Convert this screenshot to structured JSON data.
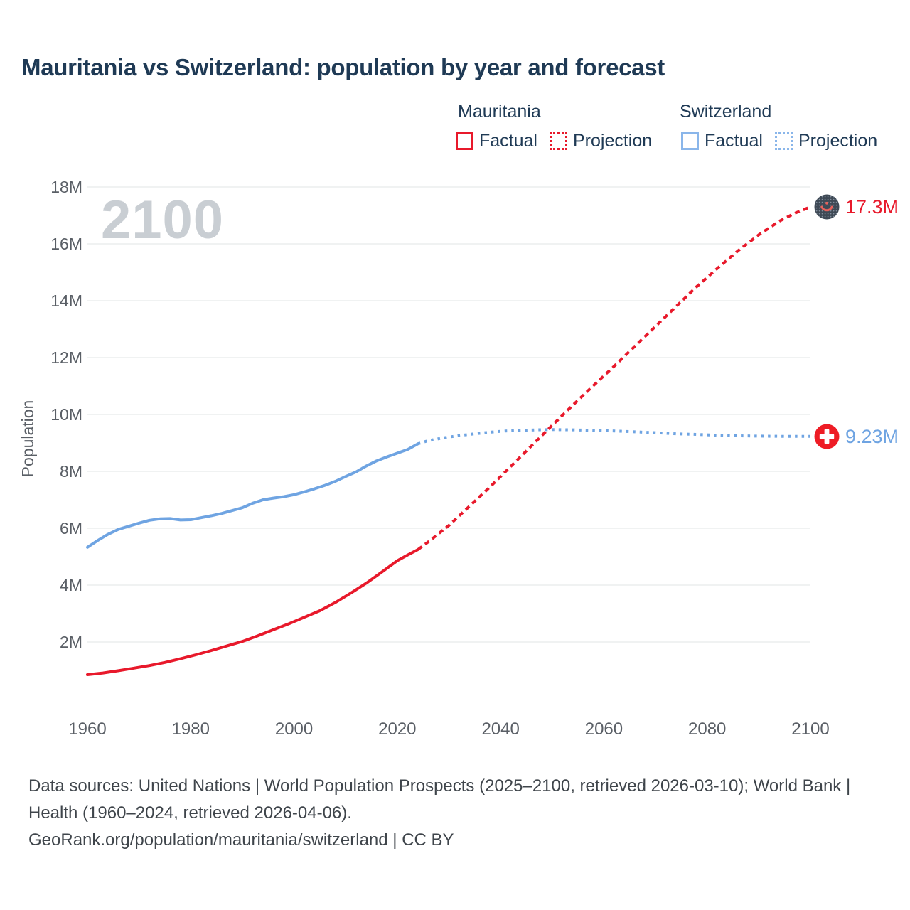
{
  "title": "Mauritania vs Switzerland: population by year and forecast",
  "watermark": {
    "label": "2100"
  },
  "colors": {
    "mauritania_red": "#e8192b",
    "switzerland_blue": "#6fa4e2",
    "swatch_blue": "#8ab6ea",
    "grid": "#e7e9eb",
    "title_text": "#1f3a55",
    "axis_text": "#5a5f66",
    "watermark_text": "#c9ced3",
    "footer_text": "#3f454b",
    "mauritania_icon_bg": "#3e4955",
    "mauritania_icon_crescent": "#e8625c",
    "swiss_icon_red": "#ee1c25"
  },
  "legend": {
    "groups": [
      {
        "name": "Mauritania",
        "items": [
          {
            "label": "Factual",
            "style": "solid"
          },
          {
            "label": "Projection",
            "style": "dotted"
          }
        ]
      },
      {
        "name": "Switzerland",
        "items": [
          {
            "label": "Factual",
            "style": "solid"
          },
          {
            "label": "Projection",
            "style": "dotted"
          }
        ]
      }
    ]
  },
  "end_labels": [
    {
      "series": "Mauritania",
      "value": "17.3M",
      "year": 2100,
      "color": "#e8192b",
      "icon": "mauritania-flag-icon"
    },
    {
      "series": "Switzerland",
      "value": "9.23M",
      "year": 2100,
      "color": "#6fa4e2",
      "icon": "switzerland-flag-icon"
    }
  ],
  "footer": {
    "sources": "Data sources: United Nations | World Population Prospects (2025–2100, retrieved 2026-03-10); World Bank | Health (1960–2024, retrieved 2026-04-06).",
    "attribution": "GeoRank.org/population/mauritania/switzerland | CC BY"
  },
  "chart_data": {
    "type": "line",
    "title": "Mauritania vs Switzerland: population by year and forecast",
    "xlabel": "",
    "ylabel": "Population",
    "xlim": [
      1960,
      2100
    ],
    "ylim": [
      0,
      18
    ],
    "grid": true,
    "legend_position": "top-right",
    "xticks": [
      1960,
      1980,
      2000,
      2020,
      2040,
      2060,
      2080,
      2100
    ],
    "yticks": [
      {
        "value": 2,
        "label": "2M"
      },
      {
        "value": 4,
        "label": "4M"
      },
      {
        "value": 6,
        "label": "6M"
      },
      {
        "value": 8,
        "label": "8M"
      },
      {
        "value": 10,
        "label": "10M"
      },
      {
        "value": 12,
        "label": "12M"
      },
      {
        "value": 14,
        "label": "14M"
      },
      {
        "value": 16,
        "label": "16M"
      },
      {
        "value": 18,
        "label": "18M"
      }
    ],
    "series": [
      {
        "name": "Mauritania Factual",
        "country": "Mauritania",
        "kind": "factual",
        "style": "solid",
        "color": "#e8192b",
        "points": [
          [
            1960,
            0.85
          ],
          [
            1963,
            0.91
          ],
          [
            1966,
            0.99
          ],
          [
            1969,
            1.08
          ],
          [
            1972,
            1.17
          ],
          [
            1975,
            1.28
          ],
          [
            1978,
            1.41
          ],
          [
            1981,
            1.55
          ],
          [
            1984,
            1.7
          ],
          [
            1987,
            1.86
          ],
          [
            1990,
            2.02
          ],
          [
            1993,
            2.22
          ],
          [
            1996,
            2.43
          ],
          [
            1999,
            2.64
          ],
          [
            2002,
            2.87
          ],
          [
            2005,
            3.1
          ],
          [
            2008,
            3.39
          ],
          [
            2011,
            3.72
          ],
          [
            2014,
            4.07
          ],
          [
            2017,
            4.46
          ],
          [
            2020,
            4.86
          ],
          [
            2022,
            5.06
          ],
          [
            2024,
            5.25
          ]
        ]
      },
      {
        "name": "Mauritania Projection",
        "country": "Mauritania",
        "kind": "projection",
        "style": "dotted",
        "color": "#e8192b",
        "points": [
          [
            2024,
            5.25
          ],
          [
            2026,
            5.52
          ],
          [
            2030,
            6.1
          ],
          [
            2034,
            6.78
          ],
          [
            2038,
            7.46
          ],
          [
            2042,
            8.18
          ],
          [
            2046,
            8.9
          ],
          [
            2050,
            9.62
          ],
          [
            2054,
            10.33
          ],
          [
            2058,
            11.02
          ],
          [
            2062,
            11.7
          ],
          [
            2066,
            12.4
          ],
          [
            2070,
            13.1
          ],
          [
            2074,
            13.8
          ],
          [
            2078,
            14.5
          ],
          [
            2082,
            15.14
          ],
          [
            2086,
            15.76
          ],
          [
            2090,
            16.32
          ],
          [
            2094,
            16.8
          ],
          [
            2097,
            17.08
          ],
          [
            2100,
            17.3
          ]
        ]
      },
      {
        "name": "Switzerland Factual",
        "country": "Switzerland",
        "kind": "factual",
        "style": "solid",
        "color": "#6fa4e2",
        "points": [
          [
            1960,
            5.33
          ],
          [
            1962,
            5.57
          ],
          [
            1964,
            5.79
          ],
          [
            1966,
            5.96
          ],
          [
            1968,
            6.07
          ],
          [
            1970,
            6.18
          ],
          [
            1972,
            6.28
          ],
          [
            1974,
            6.33
          ],
          [
            1976,
            6.34
          ],
          [
            1978,
            6.29
          ],
          [
            1980,
            6.3
          ],
          [
            1982,
            6.37
          ],
          [
            1984,
            6.44
          ],
          [
            1986,
            6.52
          ],
          [
            1988,
            6.62
          ],
          [
            1990,
            6.72
          ],
          [
            1992,
            6.88
          ],
          [
            1994,
            7.0
          ],
          [
            1996,
            7.06
          ],
          [
            1998,
            7.11
          ],
          [
            2000,
            7.18
          ],
          [
            2002,
            7.28
          ],
          [
            2004,
            7.39
          ],
          [
            2006,
            7.51
          ],
          [
            2008,
            7.65
          ],
          [
            2010,
            7.82
          ],
          [
            2012,
            7.98
          ],
          [
            2014,
            8.19
          ],
          [
            2016,
            8.37
          ],
          [
            2018,
            8.51
          ],
          [
            2020,
            8.64
          ],
          [
            2022,
            8.77
          ],
          [
            2024,
            8.97
          ]
        ]
      },
      {
        "name": "Switzerland Projection",
        "country": "Switzerland",
        "kind": "projection",
        "style": "dotted",
        "color": "#6fa4e2",
        "points": [
          [
            2024,
            8.97
          ],
          [
            2026,
            9.08
          ],
          [
            2029,
            9.18
          ],
          [
            2032,
            9.26
          ],
          [
            2035,
            9.32
          ],
          [
            2038,
            9.38
          ],
          [
            2041,
            9.42
          ],
          [
            2044,
            9.44
          ],
          [
            2047,
            9.46
          ],
          [
            2050,
            9.47
          ],
          [
            2054,
            9.46
          ],
          [
            2058,
            9.44
          ],
          [
            2062,
            9.42
          ],
          [
            2066,
            9.39
          ],
          [
            2070,
            9.36
          ],
          [
            2074,
            9.32
          ],
          [
            2078,
            9.3
          ],
          [
            2082,
            9.27
          ],
          [
            2086,
            9.25
          ],
          [
            2090,
            9.24
          ],
          [
            2095,
            9.23
          ],
          [
            2100,
            9.23
          ]
        ]
      }
    ]
  }
}
